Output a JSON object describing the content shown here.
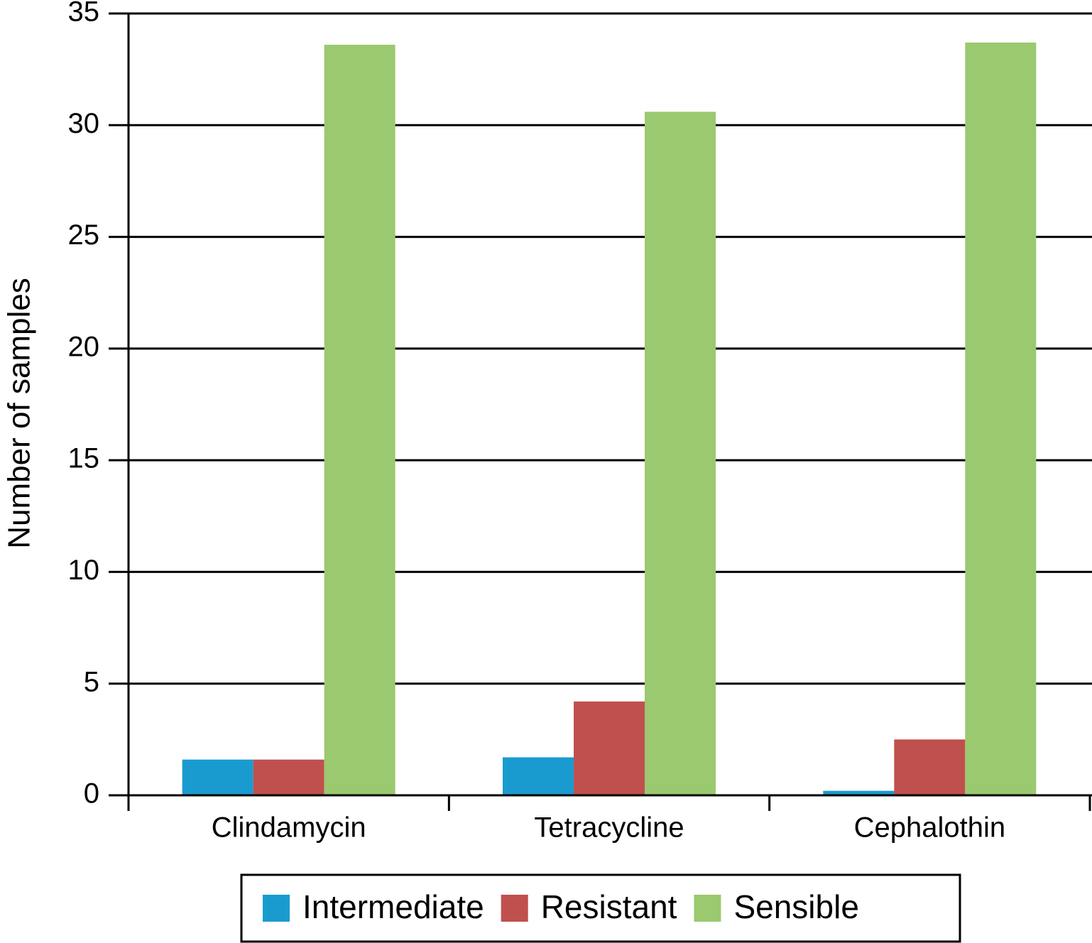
{
  "chart_data": {
    "type": "bar",
    "y_label": "Number of samples",
    "categories": [
      "Clindamycin",
      "Tetracycline",
      "Cephalothin"
    ],
    "series": [
      {
        "name": "Intermediate",
        "color": "#1a9bd0",
        "values": [
          1.6,
          1.7,
          0.2
        ]
      },
      {
        "name": "Resistant",
        "color": "#c0504d",
        "values": [
          1.6,
          4.2,
          2.5
        ]
      },
      {
        "name": "Sensible",
        "color": "#9bc96f",
        "values": [
          33.6,
          30.6,
          33.7
        ]
      }
    ],
    "ylim": [
      0,
      35
    ],
    "yticks": [
      0,
      5,
      10,
      15,
      20,
      25,
      30,
      35
    ],
    "grid": true,
    "legend": "bottom"
  }
}
